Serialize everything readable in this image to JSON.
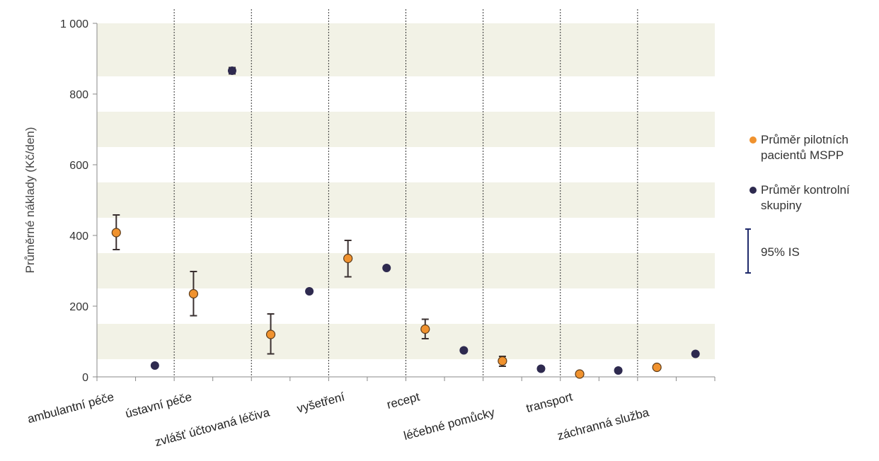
{
  "chart_data": {
    "type": "scatter",
    "ylabel": "Průměrné náklady (Kč/den)",
    "ylim": [
      0,
      1000
    ],
    "yticks": [
      0,
      200,
      400,
      600,
      800,
      1000
    ],
    "ytick_labels": [
      "0",
      "200",
      "400",
      "600",
      "800",
      "1 000"
    ],
    "categories": [
      "ambulantní péče",
      "ústavní péče",
      "zvlášť účtovaná léčiva",
      "vyšetření",
      "recept",
      "léčebné pomůcky",
      "transport",
      "záchranná služba"
    ],
    "series": [
      {
        "name": "Průměr pilotních pacientů MSPP",
        "color": "#F0922E",
        "values": [
          408,
          235,
          120,
          335,
          135,
          45,
          8,
          27
        ],
        "ci_low": [
          360,
          173,
          65,
          283,
          108,
          30,
          null,
          null
        ],
        "ci_high": [
          458,
          298,
          178,
          386,
          163,
          58,
          null,
          null
        ]
      },
      {
        "name": "Průměr kontrolní skupiny",
        "color": "#2E2A4F",
        "values": [
          32,
          866,
          242,
          308,
          75,
          23,
          18,
          65
        ],
        "ci_low": [
          null,
          857,
          null,
          null,
          null,
          null,
          null,
          null
        ],
        "ci_high": [
          null,
          875,
          null,
          null,
          null,
          null,
          null,
          null
        ]
      }
    ],
    "legend": {
      "position": "right",
      "ci_label": "95% IS",
      "ci_color": "#1F2A6B"
    },
    "band_color": "#F2F2E6",
    "grid": false
  }
}
